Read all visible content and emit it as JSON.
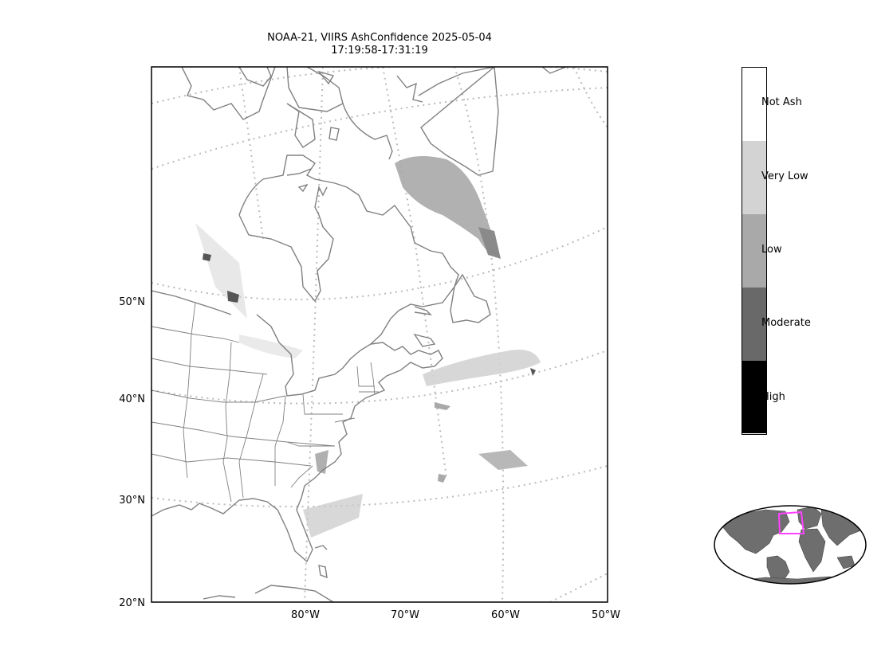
{
  "title": {
    "line1": "NOAA-21, VIIRS AshConfidence 2025-05-04",
    "line2": "17:19:58-17:31:19"
  },
  "map": {
    "lat_labels": [
      "50°N",
      "40°N",
      "30°N",
      "20°N"
    ],
    "lon_labels": [
      "80°W",
      "70°W",
      "60°W",
      "50°W"
    ],
    "coast_color": "#808080",
    "grid_color": "#bbbbbb"
  },
  "colorbar": {
    "categories": [
      {
        "label": "Not Ash",
        "color": "#ffffff"
      },
      {
        "label": "Very Low",
        "color": "#d3d3d3"
      },
      {
        "label": "Low",
        "color": "#a9a9a9"
      },
      {
        "label": "Moderate",
        "color": "#696969"
      },
      {
        "label": "High",
        "color": "#000000"
      }
    ]
  },
  "inset": {
    "land_color": "#6e6e6e",
    "box_color": "#ff44ff"
  }
}
